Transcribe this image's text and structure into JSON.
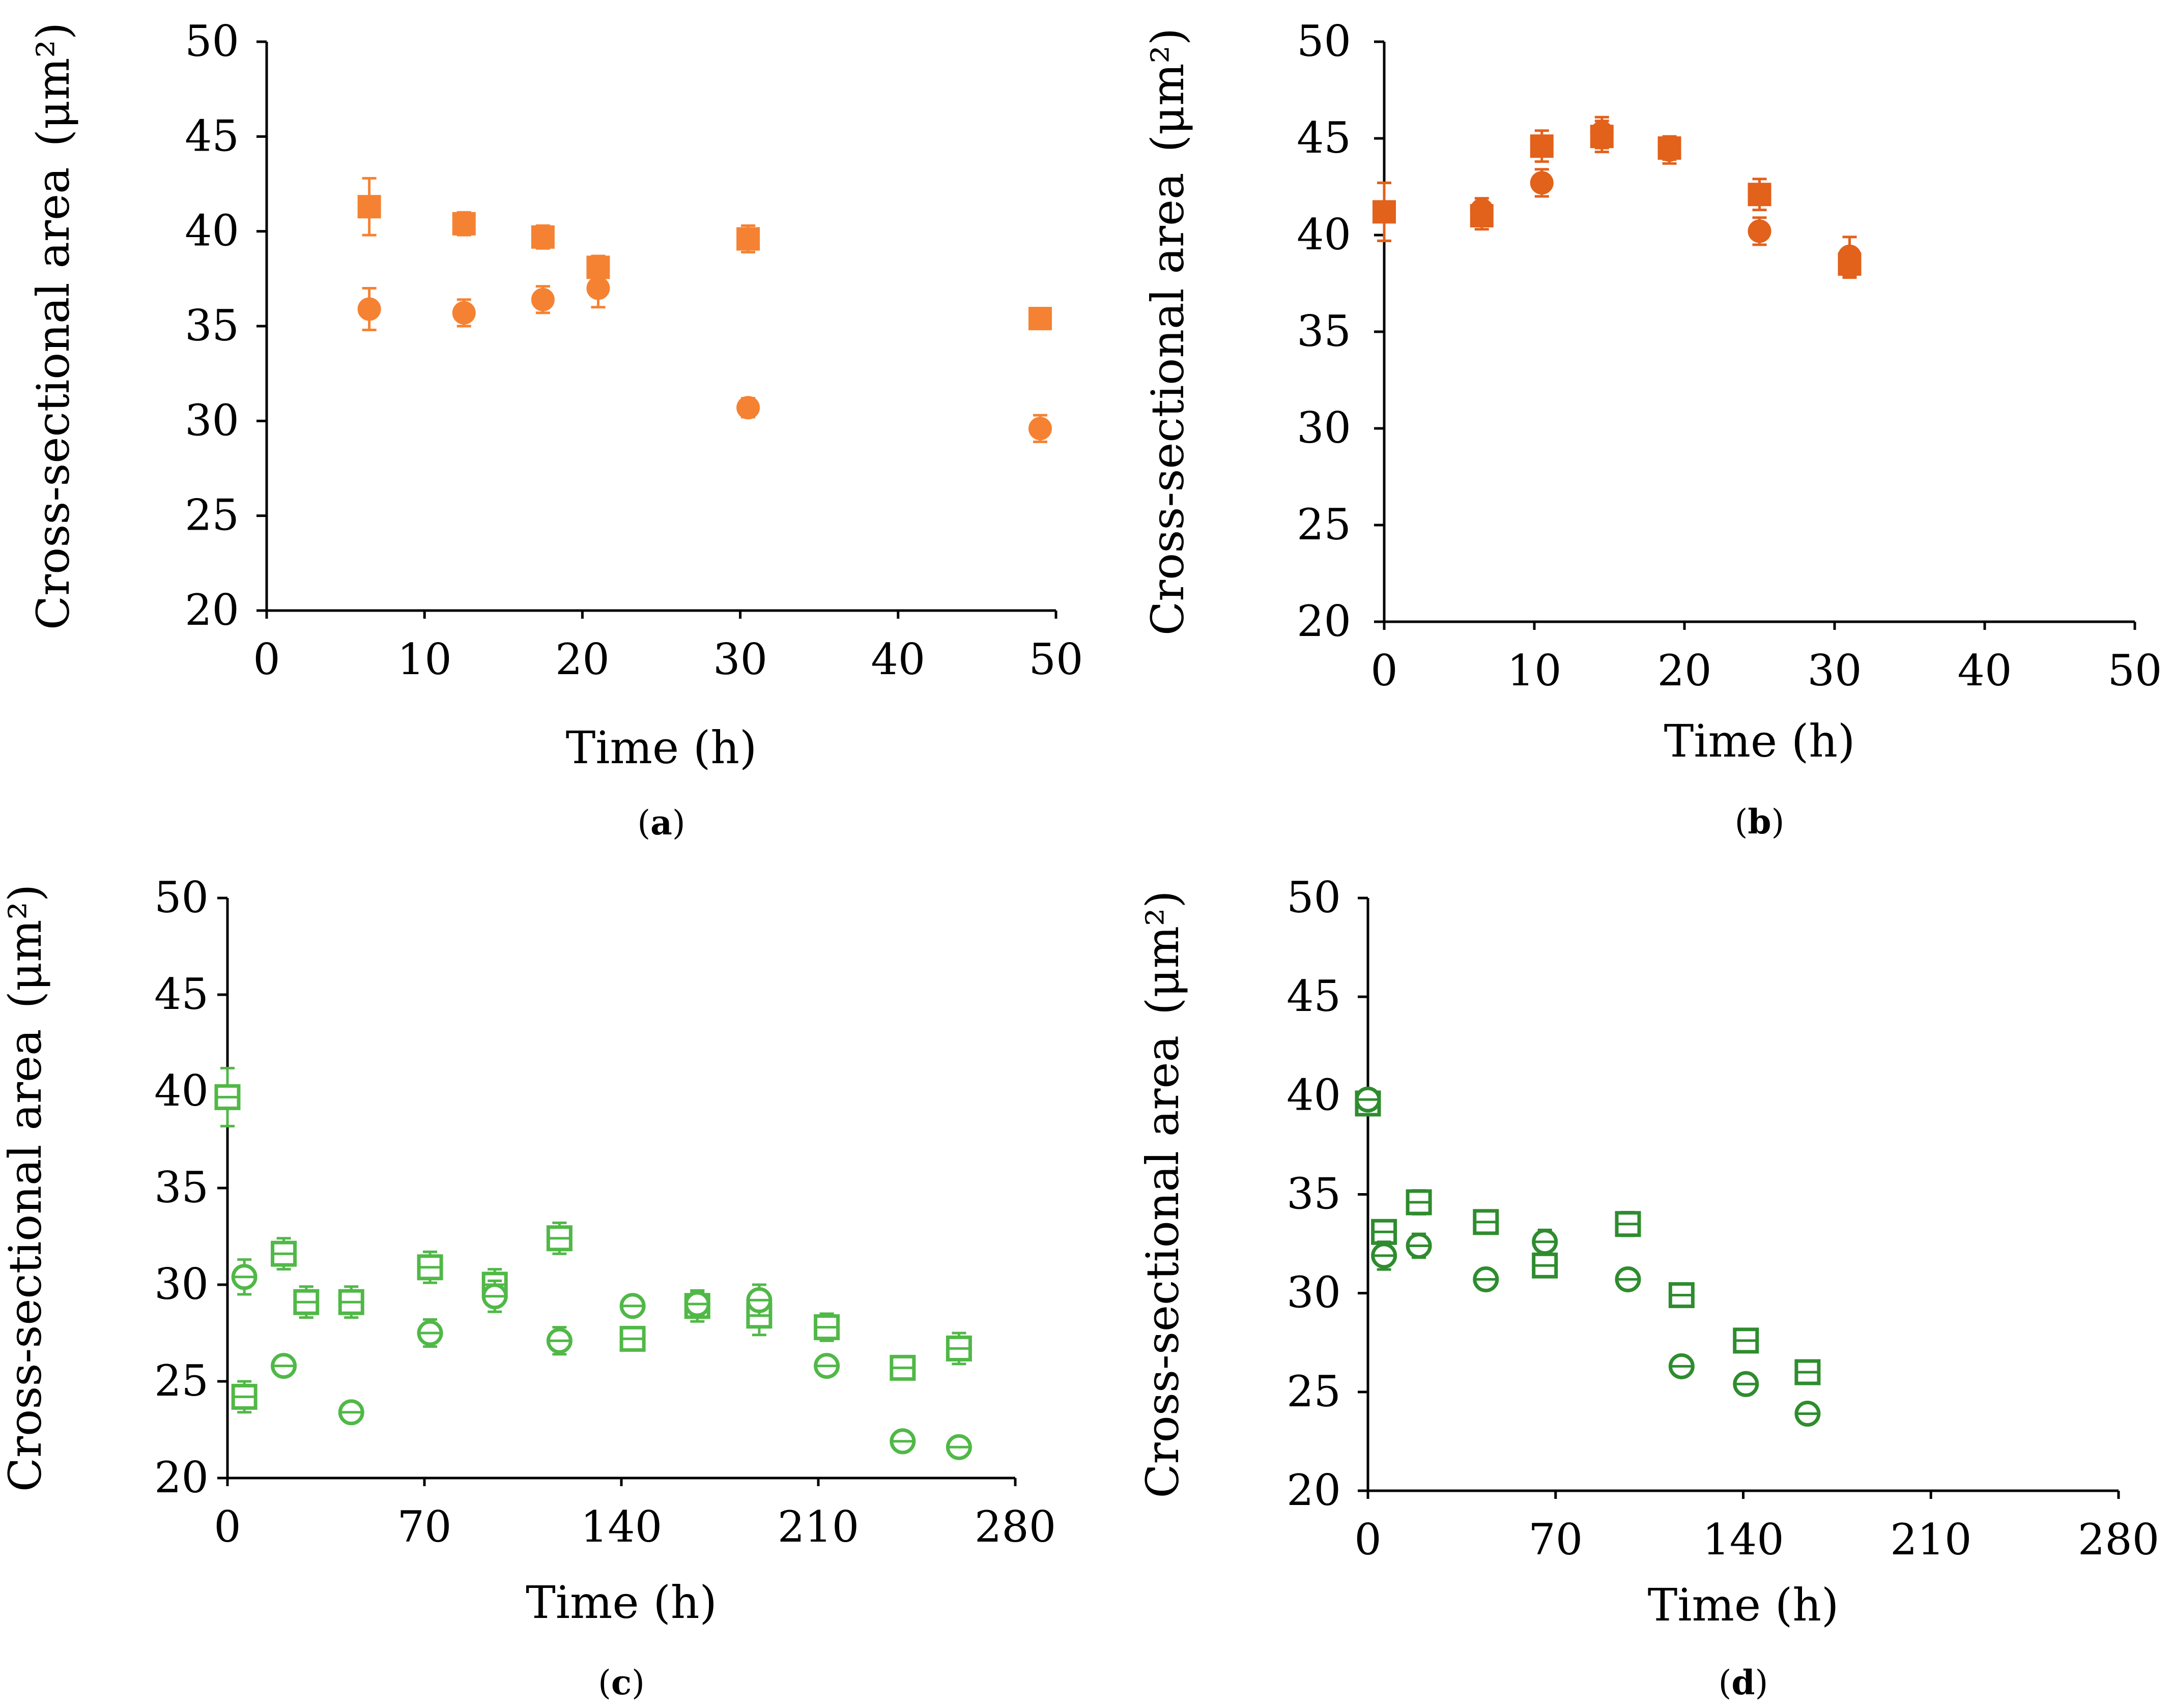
{
  "chart_data": [
    {
      "type": "scatter",
      "panel": "a",
      "caption_letter": "a",
      "xlabel": "Time (h)",
      "ylabel": "Cross-sectional area",
      "ylabel_unit": "(μm²)",
      "xlim": [
        0,
        50
      ],
      "ylim": [
        20,
        50
      ],
      "xticks": [
        0,
        10,
        20,
        30,
        40,
        50
      ],
      "yticks": [
        20,
        25,
        30,
        35,
        40,
        45,
        50
      ],
      "color": "#f58232",
      "series": [
        {
          "name": "square",
          "marker": "square",
          "filled": true,
          "x": [
            6.5,
            12.5,
            17.5,
            21,
            30.5,
            49
          ],
          "y": [
            41.3,
            40.4,
            39.7,
            38.1,
            39.6,
            35.4
          ],
          "err": [
            1.5,
            0.6,
            0.6,
            0.6,
            0.7,
            0.3
          ]
        },
        {
          "name": "circle",
          "marker": "circle",
          "filled": true,
          "x": [
            6.5,
            12.5,
            17.5,
            21,
            30.5,
            49
          ],
          "y": [
            35.9,
            35.7,
            36.4,
            37.0,
            30.7,
            29.6
          ],
          "err": [
            1.1,
            0.7,
            0.7,
            1.0,
            0.5,
            0.7
          ]
        }
      ]
    },
    {
      "type": "scatter",
      "panel": "b",
      "caption_letter": "b",
      "xlabel": "Time (h)",
      "ylabel": "Cross-sectional area",
      "ylabel_unit": "(μm²)",
      "xlim": [
        0,
        50
      ],
      "ylim": [
        20,
        50
      ],
      "xticks": [
        0,
        10,
        20,
        30,
        40,
        50
      ],
      "yticks": [
        20,
        25,
        30,
        35,
        40,
        45,
        50
      ],
      "color": "#e2611b",
      "series": [
        {
          "name": "square",
          "marker": "square",
          "filled": true,
          "x": [
            0,
            6.5,
            10.5,
            14.5,
            19,
            25,
            31
          ],
          "y": [
            41.2,
            41.0,
            44.6,
            45.1,
            44.5,
            42.1,
            38.5
          ],
          "err": [
            1.5,
            0.7,
            0.8,
            0.8,
            0.6,
            0.8,
            0.7
          ]
        },
        {
          "name": "circle",
          "marker": "circle",
          "filled": true,
          "x": [
            0,
            6.5,
            10.5,
            14.5,
            19,
            25,
            31
          ],
          "y": [
            41.2,
            41.3,
            42.7,
            45.3,
            44.4,
            40.2,
            38.9
          ],
          "err": [
            1.5,
            0.6,
            0.7,
            0.8,
            0.7,
            0.7,
            1.0
          ]
        }
      ]
    },
    {
      "type": "scatter",
      "panel": "c",
      "caption_letter": "c",
      "xlabel": "Time (h)",
      "ylabel": "Cross-sectional area",
      "ylabel_unit": "(μm²)",
      "xlim": [
        0,
        280
      ],
      "ylim": [
        20,
        50
      ],
      "xticks": [
        0,
        70,
        140,
        210,
        280
      ],
      "yticks": [
        20,
        25,
        30,
        35,
        40,
        45,
        50
      ],
      "color": "#50b847",
      "series": [
        {
          "name": "square",
          "marker": "square",
          "filled": false,
          "x": [
            0,
            6,
            20,
            28,
            44,
            72,
            95,
            118,
            144,
            167,
            189,
            213,
            240,
            260
          ],
          "y": [
            39.7,
            24.2,
            31.6,
            29.1,
            29.1,
            30.9,
            30.0,
            32.4,
            27.2,
            28.9,
            28.4,
            27.8,
            25.7,
            26.7
          ],
          "err": [
            1.5,
            0.8,
            0.8,
            0.8,
            0.8,
            0.8,
            0.8,
            0.8,
            0.5,
            0.8,
            1.0,
            0.7,
            0.5,
            0.8
          ]
        },
        {
          "name": "circle",
          "marker": "circle",
          "filled": false,
          "x": [
            6,
            20,
            44,
            72,
            95,
            118,
            144,
            167,
            189,
            213,
            240,
            260
          ],
          "y": [
            30.4,
            25.8,
            23.4,
            27.5,
            29.4,
            27.1,
            28.9,
            29.0,
            29.2,
            25.8,
            21.9,
            21.6
          ],
          "err": [
            0.9,
            0.4,
            0.4,
            0.7,
            0.8,
            0.7,
            0.5,
            0.6,
            0.8,
            0.5,
            0.4,
            0.4
          ]
        }
      ]
    },
    {
      "type": "scatter",
      "panel": "d",
      "caption_letter": "d",
      "xlabel": "Time (h)",
      "ylabel": "Cross-sectional area",
      "ylabel_unit": "(μm²)",
      "xlim": [
        0,
        280
      ],
      "ylim": [
        20,
        50
      ],
      "xticks": [
        0,
        70,
        140,
        210,
        280
      ],
      "yticks": [
        20,
        25,
        30,
        35,
        40,
        45,
        50
      ],
      "color": "#2e8c2e",
      "series": [
        {
          "name": "square",
          "marker": "square",
          "filled": false,
          "x": [
            0,
            6,
            19,
            44,
            66,
            97,
            117,
            141,
            164
          ],
          "y": [
            39.6,
            33.1,
            34.6,
            33.6,
            31.4,
            33.5,
            29.9,
            27.6,
            26.0
          ],
          "err": [
            0.5,
            0.5,
            0.6,
            0.5,
            0.5,
            0.6,
            0.4,
            0.4,
            0.4
          ]
        },
        {
          "name": "circle",
          "marker": "circle",
          "filled": false,
          "x": [
            0,
            6,
            19,
            44,
            66,
            97,
            117,
            141,
            164
          ],
          "y": [
            39.8,
            31.9,
            32.4,
            30.7,
            32.6,
            30.7,
            26.3,
            25.4,
            23.9
          ],
          "err": [
            0.5,
            0.7,
            0.6,
            0.4,
            0.6,
            0.4,
            0.4,
            0.5,
            0.4
          ]
        }
      ]
    }
  ]
}
